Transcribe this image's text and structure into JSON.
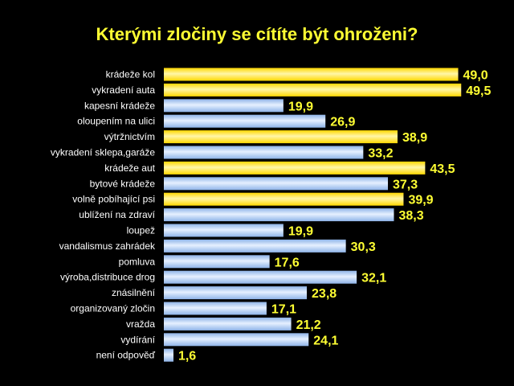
{
  "chart_data": {
    "type": "bar",
    "orientation": "horizontal",
    "title": "Kterými zločiny se cítíte být ohroženi?",
    "categories": [
      "krádeže kol",
      "vykradení auta",
      "kapesní krádeže",
      "oloupením na ulici",
      "výtržnictvím",
      "vykradení sklepa,garáže",
      "krádeže aut",
      "bytové krádeže",
      "volně pobíhající psi",
      "ublížení na zdraví",
      "loupež",
      "vandalismus zahrádek",
      "pomluva",
      "výroba,distribuce drog",
      "znásilnění",
      "organizovaný zločin",
      "vražda",
      "vydírání",
      "není odpověď"
    ],
    "values": [
      49.0,
      49.5,
      19.9,
      26.9,
      38.9,
      33.2,
      43.5,
      37.3,
      39.9,
      38.3,
      19.9,
      30.3,
      17.6,
      32.1,
      23.8,
      17.1,
      21.2,
      24.1,
      1.6
    ],
    "value_labels": [
      "49,0",
      "49,5",
      "19,9",
      "26,9",
      "38,9",
      "33,2",
      "43,5",
      "37,3",
      "39,9",
      "38,3",
      "19,9",
      "30,3",
      "17,6",
      "32,1",
      "23,8",
      "17,1",
      "21,2",
      "24,1",
      "1,6"
    ],
    "highlight": [
      true,
      true,
      false,
      false,
      true,
      false,
      true,
      false,
      true,
      false,
      false,
      false,
      false,
      false,
      false,
      false,
      false,
      false,
      false
    ],
    "xlim": [
      0,
      50
    ],
    "grid": false,
    "legend": "none",
    "colors": {
      "background": "#000000",
      "title": "#ffff33",
      "category_label": "#ffffff",
      "value_label": "#ffff33",
      "highlight_bar": "#ffd700",
      "highlight_bar_light": "#fff6a8",
      "normal_bar": "#8fb4e8",
      "normal_bar_light": "#e6f0ff"
    }
  }
}
